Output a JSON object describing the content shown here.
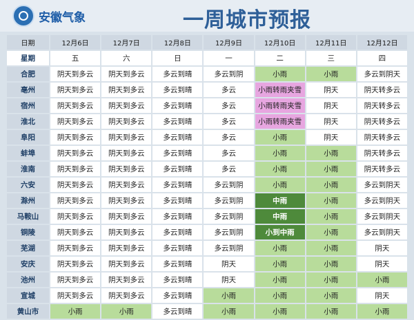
{
  "header": {
    "org_name": "安徽气象",
    "title": "一周城市预报"
  },
  "table": {
    "date_label": "日期",
    "week_label": "星期",
    "dates": [
      "12月6日",
      "12月7日",
      "12月8日",
      "12月9日",
      "12月10日",
      "12月11日",
      "12月12日"
    ],
    "weekdays": [
      "五",
      "六",
      "日",
      "一",
      "二",
      "三",
      "四"
    ],
    "rows": [
      {
        "city": "合肥",
        "days": [
          "阴天到多云",
          "阴天到多云",
          "多云到晴",
          "多云到阴",
          "小雨",
          "小雨",
          "多云到阴天"
        ]
      },
      {
        "city": "亳州",
        "days": [
          "阴天到多云",
          "阴天到多云",
          "多云到晴",
          "多云",
          "小雨转雨夹雪",
          "阴天",
          "阴天转多云"
        ]
      },
      {
        "city": "宿州",
        "days": [
          "阴天到多云",
          "阴天到多云",
          "多云到晴",
          "多云",
          "小雨转雨夹雪",
          "阴天",
          "阴天转多云"
        ]
      },
      {
        "city": "淮北",
        "days": [
          "阴天到多云",
          "阴天到多云",
          "多云到晴",
          "多云",
          "小雨转雨夹雪",
          "阴天",
          "阴天转多云"
        ]
      },
      {
        "city": "阜阳",
        "days": [
          "阴天到多云",
          "阴天到多云",
          "多云到晴",
          "多云",
          "小雨",
          "阴天",
          "阴天转多云"
        ]
      },
      {
        "city": "蚌埠",
        "days": [
          "阴天到多云",
          "阴天到多云",
          "多云到晴",
          "多云",
          "小雨",
          "小雨",
          "阴天转多云"
        ]
      },
      {
        "city": "淮南",
        "days": [
          "阴天到多云",
          "阴天到多云",
          "多云到晴",
          "多云",
          "小雨",
          "小雨",
          "阴天转多云"
        ]
      },
      {
        "city": "六安",
        "days": [
          "阴天到多云",
          "阴天到多云",
          "多云到晴",
          "多云到阴",
          "小雨",
          "小雨",
          "多云到阴天"
        ]
      },
      {
        "city": "滁州",
        "days": [
          "阴天到多云",
          "阴天到多云",
          "多云到晴",
          "多云到阴",
          "中雨",
          "小雨",
          "多云到阴天"
        ]
      },
      {
        "city": "马鞍山",
        "days": [
          "阴天到多云",
          "阴天到多云",
          "多云到晴",
          "多云到阴",
          "中雨",
          "小雨",
          "多云到阴天"
        ]
      },
      {
        "city": "铜陵",
        "days": [
          "阴天到多云",
          "阴天到多云",
          "多云到晴",
          "多云到阴",
          "小到中雨",
          "小雨",
          "多云到阴天"
        ]
      },
      {
        "city": "芜湖",
        "days": [
          "阴天到多云",
          "阴天到多云",
          "多云到晴",
          "多云到阴",
          "小雨",
          "小雨",
          "阴天"
        ]
      },
      {
        "city": "安庆",
        "days": [
          "阴天到多云",
          "阴天到多云",
          "多云到晴",
          "阴天",
          "小雨",
          "小雨",
          "阴天"
        ]
      },
      {
        "city": "池州",
        "days": [
          "阴天到多云",
          "阴天到多云",
          "多云到晴",
          "阴天",
          "小雨",
          "小雨",
          "小雨"
        ]
      },
      {
        "city": "宣城",
        "days": [
          "阴天到多云",
          "阴天到多云",
          "多云到晴",
          "小雨",
          "小雨",
          "小雨",
          "阴天"
        ]
      },
      {
        "city": "黄山市",
        "days": [
          "小雨",
          "小雨",
          "多云到晴",
          "小雨",
          "小雨",
          "小雨",
          "小雨"
        ]
      }
    ]
  },
  "colors": {
    "rain": "#b8dc9b",
    "moderate_rain": "#4e8a3b",
    "rain_to_sleet": "#e7a6e0",
    "default": "#ffffff",
    "header_bg": "#cfd8e2"
  }
}
